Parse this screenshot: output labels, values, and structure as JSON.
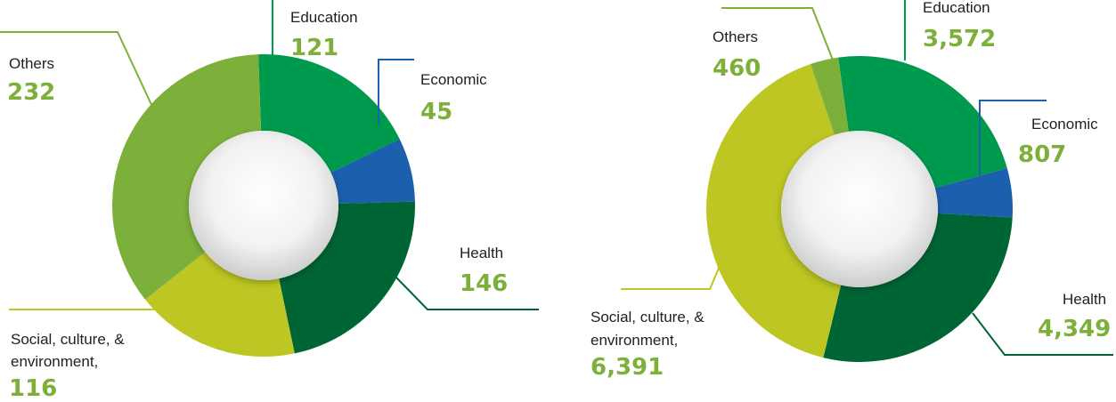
{
  "colors": {
    "education": "#009a4e",
    "economic": "#1b5fad",
    "health": "#006535",
    "social": "#bdc622",
    "others": "#7db03a",
    "value_text": "#7db03a"
  },
  "chart_data": [
    {
      "type": "pie",
      "donut": true,
      "title": "",
      "categories": [
        "Education",
        "Economic",
        "Health",
        "Social, culture, & environment,",
        "Others"
      ],
      "values": [
        121,
        45,
        146,
        116,
        232
      ],
      "value_labels": [
        "121",
        "45",
        "146",
        "116",
        "232"
      ],
      "legend": "none"
    },
    {
      "type": "pie",
      "donut": true,
      "title": "",
      "categories": [
        "Education",
        "Economic",
        "Health",
        "Social, culture, & environment,",
        "Others"
      ],
      "values": [
        3572,
        807,
        4349,
        6391,
        460
      ],
      "value_labels": [
        "3,572",
        "807",
        "4,349",
        "6,391",
        "460"
      ],
      "legend": "none"
    }
  ]
}
